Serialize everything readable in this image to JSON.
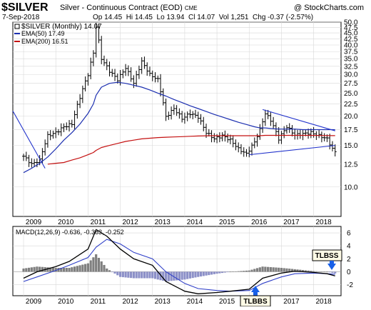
{
  "header": {
    "symbol": "$SILVER",
    "description": "Silver - Continuous Contract (EOD)",
    "exchange": "CME",
    "credit": "@ StockCharts.com",
    "date": "7-Sep-2018",
    "ohlc": "Op 14.45  Hi 14.45  Lo 13.94  Cl 14.07  Vol 1,251  Chg -0.37 (-2.57%)"
  },
  "legend": {
    "main": "$SILVER (Monthly) 14.07",
    "ema50": "EMA(50) 17.49",
    "ema200": "EMA(200) 16.51",
    "macd": "MACD(12,26,9) -0.636, -0.383, -0.252"
  },
  "annotations": {
    "tlbss": "TLBSS",
    "tlbbs": "TLBBS"
  },
  "colors": {
    "price": "#000000",
    "ema50": "#1c2fb0",
    "ema200": "#c41010",
    "trendline": "#2233cc",
    "macd_signal": "#3040c8",
    "hist": "#8a8fbf",
    "hist_pos": "#7f7f7f",
    "hist_neg": "#8c90c8",
    "arrow": "#1860e8",
    "box_bg": "#fffbe6"
  },
  "chart_data": [
    {
      "type": "ohlc",
      "title": "$SILVER (Monthly)",
      "x": [
        "2009-01",
        "2009-04",
        "2009-07",
        "2009-10",
        "2010-01",
        "2010-04",
        "2010-07",
        "2010-10",
        "2011-01",
        "2011-03",
        "2011-04",
        "2011-06",
        "2011-09",
        "2011-12",
        "2012-03",
        "2012-06",
        "2012-09",
        "2012-12",
        "2013-03",
        "2013-06",
        "2013-09",
        "2013-12",
        "2014-03",
        "2014-06",
        "2014-09",
        "2014-12",
        "2015-03",
        "2015-06",
        "2015-09",
        "2015-12",
        "2016-03",
        "2016-05",
        "2016-07",
        "2016-09",
        "2016-12",
        "2017-03",
        "2017-06",
        "2017-09",
        "2017-12",
        "2018-03",
        "2018-06",
        "2018-08",
        "2018-09"
      ],
      "close": [
        13.5,
        12.5,
        13.0,
        16.5,
        17.0,
        18.0,
        18.5,
        24.0,
        30.0,
        37.0,
        48.0,
        35.0,
        31.0,
        28.5,
        32.0,
        27.5,
        34.0,
        30.0,
        28.5,
        19.8,
        21.5,
        19.5,
        20.5,
        19.8,
        17.0,
        16.0,
        16.5,
        15.8,
        14.5,
        13.8,
        15.5,
        17.5,
        20.5,
        19.2,
        16.0,
        18.0,
        16.6,
        16.8,
        17.0,
        16.5,
        16.0,
        14.5,
        14.07
      ],
      "ema50": [
        11.5,
        12.0,
        12.6,
        13.4,
        14.5,
        15.8,
        17.0,
        18.5,
        20.5,
        22.5,
        24.5,
        26.5,
        27.5,
        27.8,
        27.5,
        27.0,
        26.5,
        25.8,
        25.0,
        24.3,
        23.5,
        22.8,
        22.1,
        21.5,
        20.9,
        20.3,
        19.8,
        19.3,
        18.8,
        18.4,
        18.0,
        17.8,
        17.8,
        17.7,
        17.6,
        17.6,
        17.6,
        17.5,
        17.5,
        17.5,
        17.5,
        17.5,
        17.49
      ],
      "ema200": [
        null,
        null,
        null,
        12.5,
        12.6,
        12.7,
        13.0,
        13.3,
        13.7,
        14.0,
        14.3,
        14.7,
        15.0,
        15.3,
        15.6,
        15.8,
        16.0,
        16.1,
        16.2,
        16.25,
        16.3,
        16.35,
        16.4,
        16.45,
        16.48,
        16.5,
        16.5,
        16.5,
        16.5,
        16.5,
        16.5,
        16.5,
        16.55,
        16.55,
        16.55,
        16.55,
        16.55,
        16.55,
        16.55,
        16.53,
        16.52,
        16.51,
        16.51
      ],
      "y_ticks": [
        10,
        12.5,
        15,
        17.5,
        20,
        22.5,
        25,
        27.5,
        30,
        32.5,
        35,
        37.5,
        40,
        42.5,
        45,
        47.5,
        50
      ],
      "y_tick_labels": [
        "10.0",
        "12.5",
        "15.0",
        "17.5",
        "20.0",
        "22.5",
        "25.0",
        "27.5",
        "30.0",
        "32.5",
        "35.0",
        "37.5",
        "40.0",
        "42.5",
        "45.0",
        "47.5",
        "50.0"
      ],
      "ylim": [
        7.5,
        50
      ],
      "yscale": "log",
      "x_tick_labels": [
        "2009",
        "2010",
        "2011",
        "2012",
        "2013",
        "2014",
        "2015",
        "2016",
        "2017",
        "2018"
      ],
      "trendlines": [
        {
          "from": [
            "2008-09",
            21
          ],
          "to": [
            "2009-09",
            12
          ]
        },
        {
          "from": [
            "2016-01",
            13.7
          ],
          "to": [
            "2018-09",
            15.0
          ]
        },
        {
          "from": [
            "2016-06",
            21.3
          ],
          "to": [
            "2018-09",
            17.3
          ]
        }
      ]
    },
    {
      "type": "macd",
      "title": "MACD(12,26,9)",
      "x": [
        "2009-01",
        "2009-06",
        "2010-01",
        "2010-06",
        "2011-01",
        "2011-04",
        "2011-08",
        "2012-01",
        "2012-06",
        "2013-01",
        "2013-06",
        "2014-01",
        "2014-06",
        "2015-01",
        "2015-06",
        "2016-01",
        "2016-06",
        "2017-01",
        "2017-06",
        "2018-01",
        "2018-06",
        "2018-09"
      ],
      "macd": [
        -1.0,
        0.0,
        0.8,
        1.6,
        3.5,
        6.5,
        5.5,
        3.5,
        2.0,
        1.0,
        -1.5,
        -3.0,
        -3.4,
        -3.2,
        -3.0,
        -2.7,
        -1.0,
        -0.2,
        0.1,
        -0.1,
        -0.3,
        -0.636
      ],
      "signal": [
        -1.5,
        -0.8,
        0.2,
        1.0,
        2.2,
        3.8,
        5.0,
        4.3,
        3.0,
        2.0,
        0.0,
        -1.8,
        -2.6,
        -2.9,
        -3.0,
        -2.9,
        -1.8,
        -0.8,
        -0.3,
        -0.2,
        -0.3,
        -0.383
      ],
      "y_ticks": [
        -2,
        0,
        2,
        4,
        6
      ],
      "y_tick_labels": [
        "-2",
        "0",
        "2",
        "4",
        "6"
      ],
      "ylim": [
        -3.7,
        7
      ]
    }
  ]
}
